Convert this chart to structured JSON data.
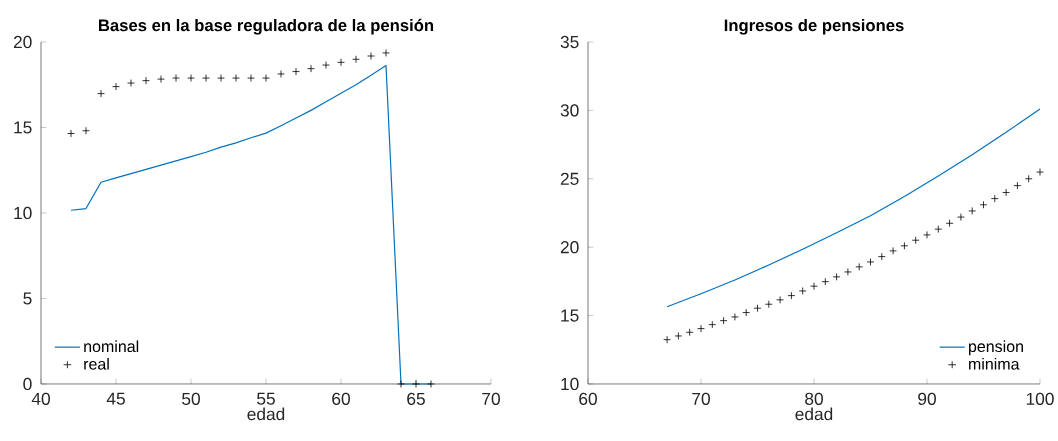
{
  "chart_data": [
    {
      "type": "line",
      "title": "Bases en la base reguladora de la pensión",
      "xlabel": "edad",
      "xlim": [
        40,
        70
      ],
      "xticks": [
        40,
        45,
        50,
        55,
        60,
        65,
        70
      ],
      "ylim": [
        0,
        20
      ],
      "yticks": [
        0,
        5,
        10,
        15,
        20
      ],
      "legend": "bottom left",
      "series": [
        {
          "name": "nominal",
          "color": "#0072bd",
          "marker": "none",
          "x": [
            42,
            43,
            44,
            45,
            46,
            47,
            48,
            49,
            50,
            51,
            52,
            53,
            54,
            55,
            56,
            57,
            58,
            59,
            60,
            61,
            62,
            63,
            64,
            65,
            66
          ],
          "values": [
            10.16,
            10.26,
            11.8,
            12.05,
            12.3,
            12.55,
            12.8,
            13.05,
            13.3,
            13.55,
            13.85,
            14.1,
            14.4,
            14.67,
            15.1,
            15.55,
            16.0,
            16.5,
            17.0,
            17.5,
            18.05,
            18.62,
            0,
            0,
            0
          ]
        },
        {
          "name": "real",
          "type": "scatter",
          "color": "#000000",
          "marker": "cross",
          "x": [
            42,
            43,
            44,
            45,
            46,
            47,
            48,
            49,
            50,
            51,
            52,
            53,
            54,
            55,
            56,
            57,
            58,
            59,
            60,
            61,
            62,
            63,
            64,
            65,
            66
          ],
          "values": [
            14.65,
            14.81,
            16.98,
            17.39,
            17.6,
            17.74,
            17.83,
            17.89,
            17.89,
            17.89,
            17.89,
            17.89,
            17.89,
            17.89,
            18.13,
            18.27,
            18.44,
            18.65,
            18.81,
            18.99,
            19.18,
            19.36,
            0,
            0,
            0
          ]
        }
      ]
    },
    {
      "type": "line",
      "title": "Ingresos de pensiones",
      "xlabel": "edad",
      "xlim": [
        60,
        100
      ],
      "xticks": [
        60,
        70,
        80,
        90,
        100
      ],
      "ylim": [
        10,
        35
      ],
      "yticks": [
        10,
        15,
        20,
        25,
        30,
        35
      ],
      "legend": "bottom right",
      "series": [
        {
          "name": "pension",
          "color": "#0072bd",
          "marker": "none",
          "x": [
            67,
            70,
            73,
            76,
            79,
            82,
            85,
            88,
            91,
            94,
            97,
            100
          ],
          "values": [
            15.65,
            16.6,
            17.6,
            18.7,
            19.85,
            21.05,
            22.3,
            23.7,
            25.2,
            26.75,
            28.4,
            30.1
          ]
        },
        {
          "name": "minima",
          "type": "scatter",
          "color": "#000000",
          "marker": "cross",
          "x": [
            67,
            68,
            69,
            70,
            71,
            72,
            73,
            74,
            75,
            76,
            77,
            78,
            79,
            80,
            81,
            82,
            83,
            84,
            85,
            86,
            87,
            88,
            89,
            90,
            91,
            92,
            93,
            94,
            95,
            96,
            97,
            98,
            99,
            100
          ],
          "values": [
            13.24,
            13.51,
            13.78,
            14.05,
            14.34,
            14.63,
            14.9,
            15.22,
            15.54,
            15.83,
            16.15,
            16.46,
            16.8,
            17.15,
            17.48,
            17.83,
            18.19,
            18.56,
            18.92,
            19.31,
            19.73,
            20.1,
            20.51,
            20.9,
            21.32,
            21.75,
            22.2,
            22.65,
            23.1,
            23.55,
            24.0,
            24.5,
            25.0,
            25.49
          ]
        }
      ]
    }
  ]
}
